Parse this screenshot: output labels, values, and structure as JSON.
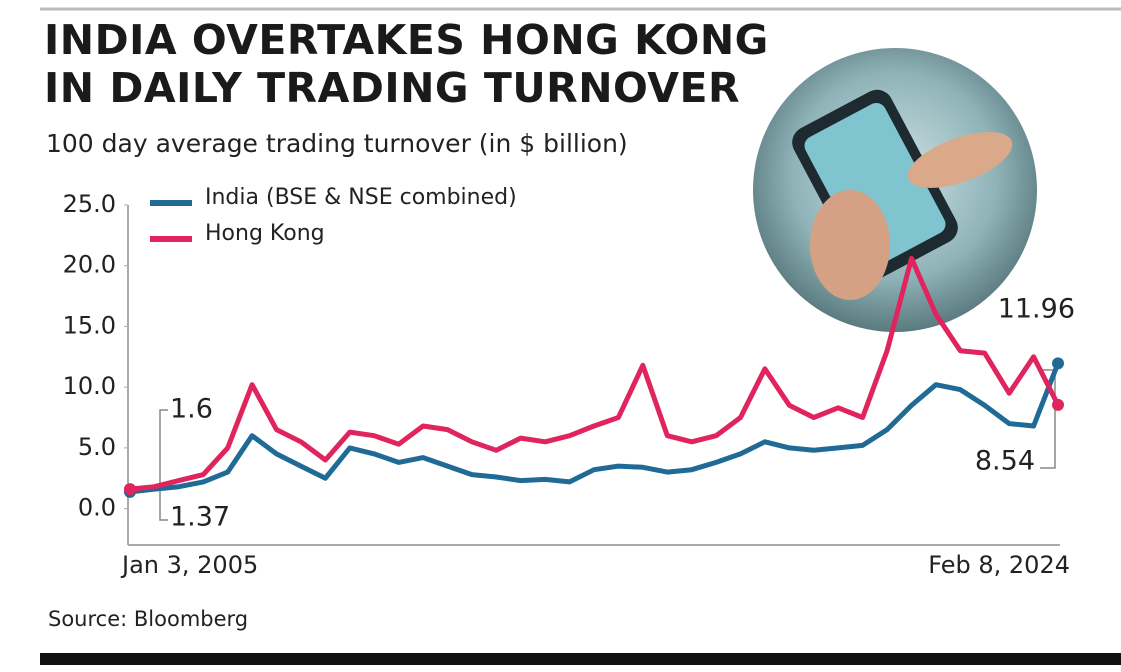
{
  "chart_data": {
    "type": "line",
    "title": "INDIA OVERTAKES HONG KONG IN DAILY TRADING TURNOVER",
    "subtitle": "100 day average trading turnover (in $ billion)",
    "source": "Source: Bloomberg",
    "categories": [
      "Jan 3, 2005",
      null,
      null,
      null,
      null,
      null,
      null,
      null,
      null,
      null,
      null,
      null,
      null,
      null,
      null,
      null,
      null,
      null,
      null,
      null,
      null,
      null,
      null,
      null,
      null,
      null,
      null,
      null,
      null,
      null,
      null,
      null,
      null,
      null,
      null,
      null,
      null,
      null,
      "Feb 8, 2024"
    ],
    "series": [
      {
        "name": "India (BSE & NSE combined)",
        "color": "#1f6b96",
        "values": [
          1.37,
          1.6,
          1.8,
          2.2,
          3.0,
          6.0,
          4.5,
          3.5,
          2.5,
          5.0,
          4.5,
          3.8,
          4.2,
          3.5,
          2.8,
          2.6,
          2.3,
          2.4,
          2.2,
          3.2,
          3.5,
          3.4,
          3.0,
          3.2,
          3.8,
          4.5,
          5.5,
          5.0,
          4.8,
          5.0,
          5.2,
          6.5,
          8.5,
          10.2,
          9.8,
          8.5,
          7.0,
          6.8,
          11.96
        ]
      },
      {
        "name": "Hong Kong",
        "color": "#e0245e",
        "values": [
          1.6,
          1.8,
          2.3,
          2.8,
          5.0,
          10.2,
          6.5,
          5.5,
          4.0,
          6.3,
          6.0,
          5.3,
          6.8,
          6.5,
          5.5,
          4.8,
          5.8,
          5.5,
          6.0,
          6.8,
          7.5,
          11.8,
          6.0,
          5.5,
          6.0,
          7.5,
          11.5,
          8.5,
          7.5,
          8.3,
          7.5,
          13.0,
          20.6,
          16.0,
          13.0,
          12.8,
          9.5,
          12.5,
          8.54
        ]
      }
    ],
    "ylim": [
      -3,
      25
    ],
    "yticks": [
      {
        "value": 0,
        "label": "0.0"
      },
      {
        "value": 5,
        "label": "5.0"
      },
      {
        "value": 10,
        "label": "10.0"
      },
      {
        "value": 15,
        "label": "15.0"
      },
      {
        "value": 20,
        "label": "20.0"
      },
      {
        "value": 25,
        "label": "25.0"
      }
    ],
    "grid": false
  }
}
